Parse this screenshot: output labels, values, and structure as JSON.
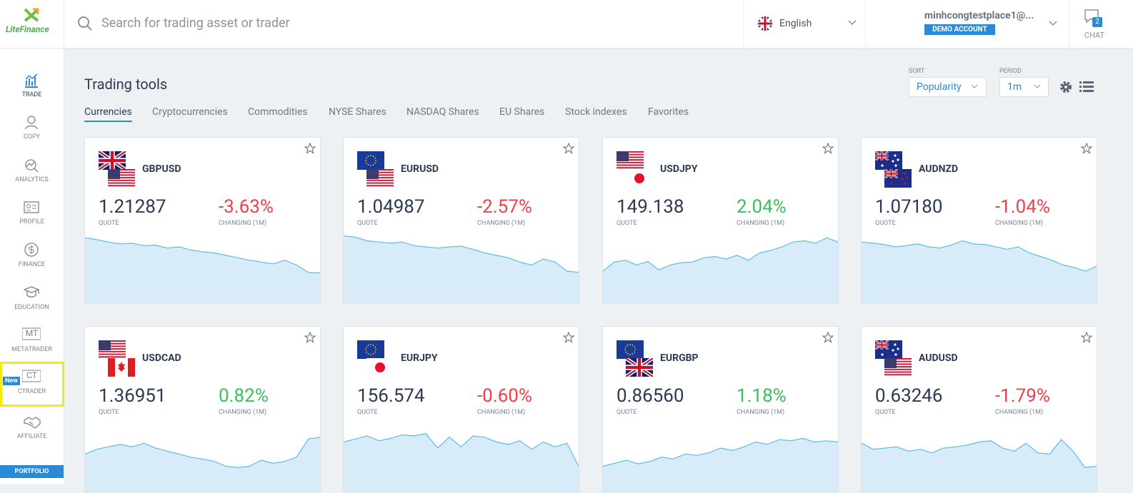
{
  "header": {
    "logo": "LiteFinance",
    "search_placeholder": "Search for trading asset or trader",
    "language": "English",
    "account_email": "minhcongtestplace1@...",
    "account_type": "DEMO ACCOUNT",
    "chat_count": "2",
    "chat_label": "CHAT"
  },
  "sidebar": {
    "items": [
      {
        "label": "TRADE"
      },
      {
        "label": "COPY"
      },
      {
        "label": "ANALYTICS"
      },
      {
        "label": "PROFILE"
      },
      {
        "label": "FINANCE"
      },
      {
        "label": "EDUCATION"
      },
      {
        "label": "METATRADER",
        "icon_text": "MT"
      },
      {
        "label": "CTRADER",
        "icon_text": "CT",
        "badge": "New"
      },
      {
        "label": "AFFILIATE"
      }
    ],
    "portfolio": "PORTFOLIO"
  },
  "page": {
    "title": "Trading tools",
    "sort_label": "SORT",
    "sort_value": "Popularity",
    "period_label": "PERIOD",
    "period_value": "1m",
    "tabs": [
      "Currencies",
      "Cryptocurrencies",
      "Commodities",
      "NYSE Shares",
      "NASDAQ Shares",
      "EU Shares",
      "Stock indexes",
      "Favorites"
    ],
    "quote_label": "QUOTE",
    "change_label": "CHANGING (1M)",
    "cards": [
      {
        "symbol": "GBPUSD",
        "quote": "1.21287",
        "change": "-3.63%",
        "spark": [
          95,
          92,
          88,
          85,
          86,
          82,
          83,
          78,
          80,
          75,
          72,
          70,
          66,
          62,
          58,
          55,
          52,
          58,
          50,
          38,
          37
        ]
      },
      {
        "symbol": "EURUSD",
        "quote": "1.04987",
        "change": "-2.57%",
        "spark": [
          98,
          96,
          90,
          88,
          86,
          88,
          82,
          80,
          78,
          80,
          81,
          76,
          70,
          66,
          62,
          55,
          50,
          60,
          55,
          40,
          38
        ]
      },
      {
        "symbol": "USDJPY",
        "quote": "149.138",
        "change": "2.04%",
        "spark": [
          40,
          55,
          58,
          50,
          56,
          42,
          50,
          54,
          55,
          62,
          64,
          60,
          66,
          58,
          70,
          74,
          80,
          88,
          90,
          86,
          95,
          88
        ]
      },
      {
        "symbol": "AUDNZD",
        "quote": "1.07180",
        "change": "-1.04%",
        "spark": [
          88,
          86,
          84,
          80,
          82,
          85,
          80,
          78,
          83,
          90,
          85,
          84,
          80,
          76,
          80,
          70,
          64,
          58,
          50,
          46,
          40,
          48
        ]
      },
      {
        "symbol": "USDCAD",
        "quote": "1.36951",
        "change": "0.82%",
        "spark": [
          50,
          58,
          62,
          66,
          62,
          68,
          60,
          55,
          50,
          45,
          42,
          38,
          30,
          28,
          30,
          40,
          35,
          38,
          45,
          75,
          78
        ]
      },
      {
        "symbol": "EURJPY",
        "quote": "156.574",
        "change": "-0.60%",
        "spark": [
          70,
          75,
          80,
          72,
          76,
          82,
          80,
          84,
          60,
          78,
          62,
          80,
          78,
          70,
          66,
          72,
          58,
          70,
          62,
          68,
          30
        ]
      },
      {
        "symbol": "EURGBP",
        "quote": "0.86560",
        "change": "1.18%",
        "spark": [
          30,
          35,
          40,
          34,
          38,
          45,
          42,
          50,
          48,
          52,
          60,
          56,
          62,
          70,
          66,
          74,
          72,
          76,
          70,
          72,
          70
        ]
      },
      {
        "symbol": "AUDUSD",
        "quote": "0.63246",
        "change": "-1.79%",
        "spark": [
          68,
          58,
          60,
          62,
          55,
          58,
          52,
          60,
          62,
          65,
          70,
          72,
          60,
          55,
          68,
          52,
          50,
          74,
          55,
          28,
          30
        ]
      }
    ]
  }
}
